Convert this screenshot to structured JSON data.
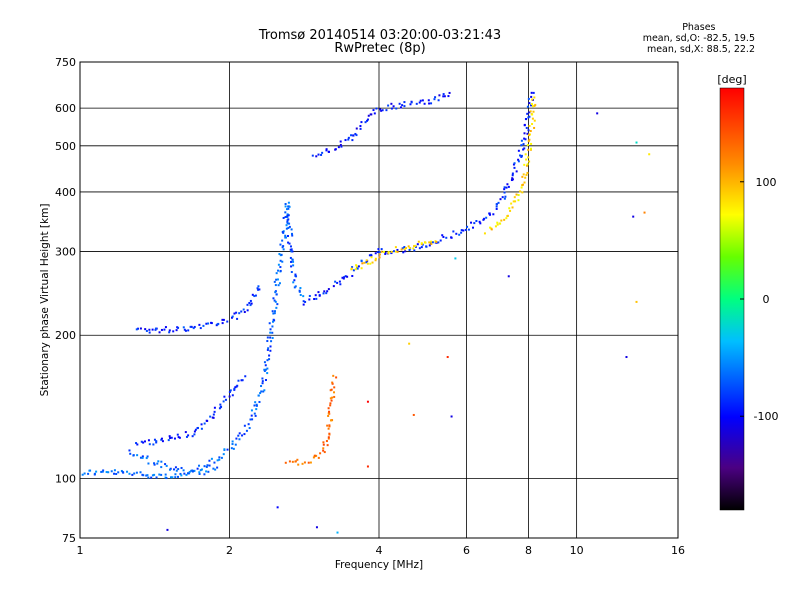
{
  "header": {
    "title_line1": "Tromsø 20140514 03:20:00-03:21:43",
    "title_line2": "RwPretec (8p)"
  },
  "phase_stats": {
    "heading": "Phases",
    "line_o": "mean, sd,O: -82.5, 19.5",
    "line_x": "mean, sd,X: 88.5, 22.2"
  },
  "colorbar": {
    "title": "[deg]",
    "range": [
      -180,
      180
    ],
    "ticks": [
      "100",
      "0",
      "-100"
    ],
    "tick_values": [
      100,
      0,
      -100
    ]
  },
  "chart_data": {
    "type": "scatter",
    "xlabel": "Frequency [MHz]",
    "ylabel": "Stationary phase Virtual Height [km]",
    "x_scale": "log",
    "y_scale": "log",
    "xlim": [
      1,
      16
    ],
    "ylim": [
      75,
      750
    ],
    "x_ticks": [
      1,
      2,
      4,
      6,
      8,
      10,
      16
    ],
    "x_tick_labels": [
      "1",
      "2",
      "4",
      "6",
      "8",
      "10",
      "16"
    ],
    "y_ticks": [
      75,
      100,
      200,
      300,
      400,
      500,
      600,
      750
    ],
    "y_tick_labels": [
      "75",
      "100",
      "200",
      "300",
      "400",
      "500",
      "600",
      "750"
    ],
    "grid": true,
    "traces": [
      {
        "points": [
          [
            1.0,
            103
          ],
          [
            1.15,
            103
          ],
          [
            1.35,
            102
          ],
          [
            1.55,
            101
          ],
          [
            1.75,
            103
          ],
          [
            1.9,
            105
          ]
        ],
        "phase": -65
      },
      {
        "points": [
          [
            1.25,
            113
          ],
          [
            1.45,
            107
          ],
          [
            1.65,
            103
          ],
          [
            1.85,
            108
          ],
          [
            2.05,
            118
          ],
          [
            2.2,
            130
          ],
          [
            2.35,
            160
          ],
          [
            2.45,
            220
          ],
          [
            2.52,
            280
          ],
          [
            2.58,
            330
          ],
          [
            2.62,
            380
          ],
          [
            2.66,
            300
          ],
          [
            2.72,
            255
          ],
          [
            2.85,
            240
          ]
        ],
        "phase": -70
      },
      {
        "points": [
          [
            1.3,
            118
          ],
          [
            1.5,
            121
          ],
          [
            1.7,
            125
          ],
          [
            1.9,
            140
          ],
          [
            2.05,
            155
          ],
          [
            2.15,
            165
          ]
        ],
        "phase": -90
      },
      {
        "points": [
          [
            1.3,
            205
          ],
          [
            1.45,
            205
          ],
          [
            1.65,
            207
          ],
          [
            1.85,
            212
          ],
          [
            2.05,
            218
          ],
          [
            2.2,
            230
          ],
          [
            2.3,
            255
          ]
        ],
        "phase": -88
      },
      {
        "points": [
          [
            2.8,
            235
          ],
          [
            3.1,
            245
          ],
          [
            3.4,
            262
          ],
          [
            3.7,
            285
          ],
          [
            4.0,
            300
          ],
          [
            4.5,
            302
          ],
          [
            5.0,
            310
          ],
          [
            5.6,
            325
          ],
          [
            6.2,
            340
          ],
          [
            6.7,
            358
          ],
          [
            7.1,
            385
          ],
          [
            7.4,
            430
          ],
          [
            7.7,
            480
          ],
          [
            7.9,
            540
          ],
          [
            8.05,
            600
          ],
          [
            8.15,
            650
          ]
        ],
        "phase": -90
      },
      {
        "points": [
          [
            2.95,
            480
          ],
          [
            3.2,
            490
          ],
          [
            3.5,
            515
          ],
          [
            3.75,
            560
          ],
          [
            4.0,
            600
          ],
          [
            4.5,
            610
          ],
          [
            5.0,
            620
          ],
          [
            5.6,
            640
          ]
        ],
        "phase": -95
      },
      {
        "points": [
          [
            3.5,
            275
          ],
          [
            3.8,
            285
          ],
          [
            4.2,
            300
          ],
          [
            4.8,
            310
          ],
          [
            5.3,
            312
          ]
        ],
        "phase": 90
      },
      {
        "points": [
          [
            6.6,
            330
          ],
          [
            7.0,
            345
          ],
          [
            7.4,
            370
          ],
          [
            7.7,
            400
          ],
          [
            7.9,
            440
          ],
          [
            8.05,
            500
          ],
          [
            8.15,
            570
          ],
          [
            8.2,
            640
          ]
        ],
        "phase": 85
      },
      {
        "points": [
          [
            2.6,
            108
          ],
          [
            2.75,
            108
          ],
          [
            2.9,
            109
          ],
          [
            3.05,
            112
          ],
          [
            3.15,
            120
          ],
          [
            3.2,
            140
          ],
          [
            3.25,
            165
          ]
        ],
        "phase": 130
      }
    ],
    "isolated_points": [
      {
        "x": 11.0,
        "y": 585,
        "phase": -110
      },
      {
        "x": 13.0,
        "y": 355,
        "phase": -110
      },
      {
        "x": 13.2,
        "y": 508,
        "phase": -20
      },
      {
        "x": 13.2,
        "y": 235,
        "phase": 95
      },
      {
        "x": 14.0,
        "y": 480,
        "phase": 80
      },
      {
        "x": 13.7,
        "y": 362,
        "phase": 120
      },
      {
        "x": 12.6,
        "y": 180,
        "phase": -110
      },
      {
        "x": 3.8,
        "y": 106,
        "phase": 160
      },
      {
        "x": 3.0,
        "y": 79,
        "phase": -110
      },
      {
        "x": 3.3,
        "y": 77,
        "phase": -40
      },
      {
        "x": 5.5,
        "y": 180,
        "phase": 160
      },
      {
        "x": 5.6,
        "y": 135,
        "phase": -110
      },
      {
        "x": 4.7,
        "y": 136,
        "phase": 140
      },
      {
        "x": 3.8,
        "y": 145,
        "phase": 180
      },
      {
        "x": 7.3,
        "y": 266,
        "phase": -110
      },
      {
        "x": 5.7,
        "y": 290,
        "phase": -30
      },
      {
        "x": 2.5,
        "y": 87,
        "phase": -100
      },
      {
        "x": 1.5,
        "y": 78,
        "phase": -110
      },
      {
        "x": 4.6,
        "y": 192,
        "phase": 90
      }
    ]
  }
}
